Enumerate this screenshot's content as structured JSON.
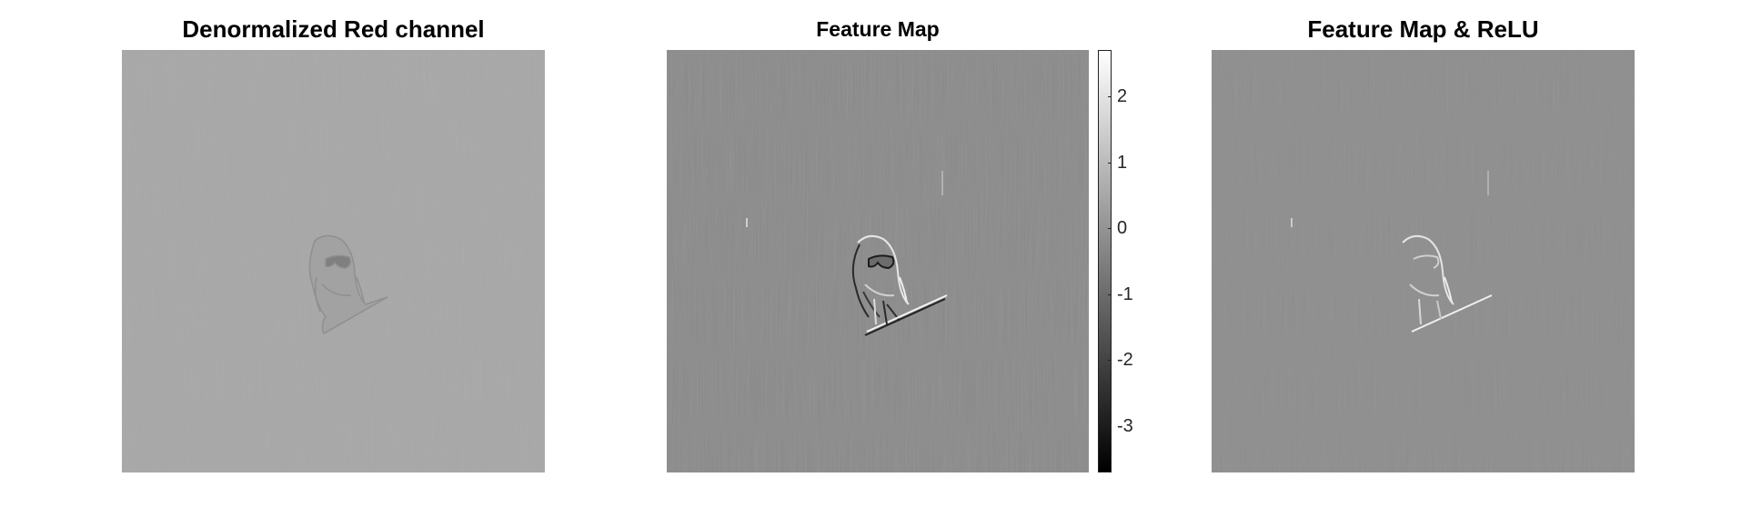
{
  "panels": [
    {
      "title": "Denormalized Red channel"
    },
    {
      "title": "Feature Map"
    },
    {
      "title": "Feature Map & ReLU"
    }
  ],
  "colorbar": {
    "colormap": "gray",
    "min": -3.7,
    "max": 2.7,
    "ticks": [
      {
        "value": 2,
        "label": "2"
      },
      {
        "value": 1,
        "label": "1"
      },
      {
        "value": 0,
        "label": "0"
      },
      {
        "value": -1,
        "label": "-1"
      },
      {
        "value": -2,
        "label": "-2"
      },
      {
        "value": -3,
        "label": "-3"
      }
    ]
  },
  "colors": {
    "panel1_background": "#a8a8a8",
    "panel2_background": "#8a8a8a",
    "panel3_background": "#8e8e8e"
  }
}
